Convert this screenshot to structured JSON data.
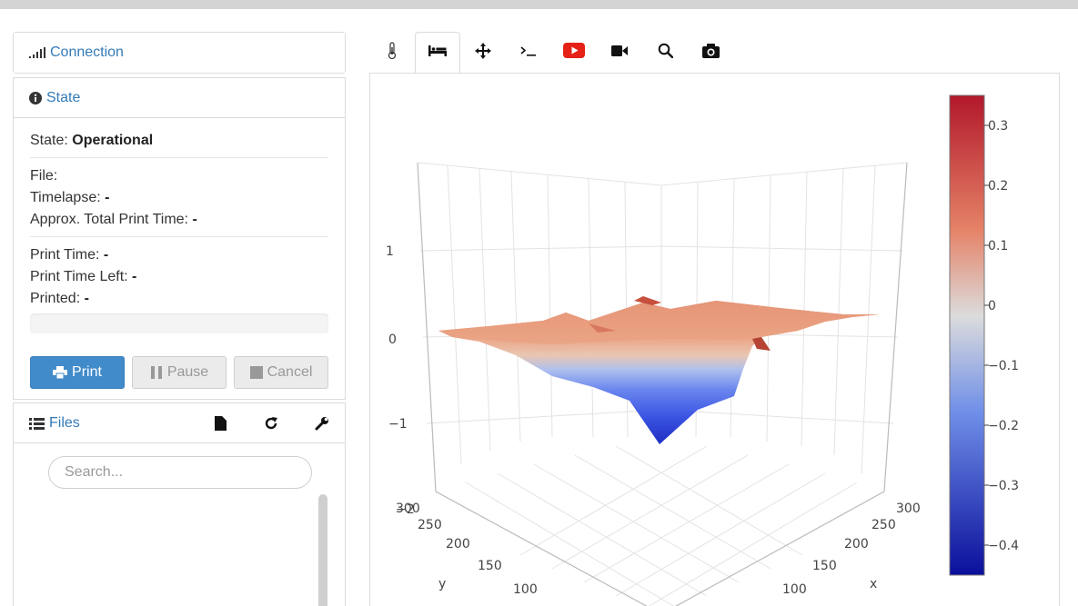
{
  "connection": {
    "title": "Connection"
  },
  "state": {
    "title": "State",
    "state_label": "State:",
    "state_value": "Operational",
    "file_label": "File:",
    "timelapse_label": "Timelapse:",
    "timelapse_value": "-",
    "approx_label": "Approx. Total Print Time:",
    "approx_value": "-",
    "print_time_label": "Print Time:",
    "print_time_value": "-",
    "time_left_label": "Print Time Left:",
    "time_left_value": "-",
    "printed_label": "Printed:",
    "printed_value": "-",
    "progress": 0
  },
  "buttons": {
    "print": "Print",
    "pause": "Pause",
    "cancel": "Cancel"
  },
  "files": {
    "title": "Files",
    "search_placeholder": "Search..."
  },
  "tabs": [
    {
      "icon": "thermometer-icon"
    },
    {
      "icon": "bed-icon",
      "active": true
    },
    {
      "icon": "move-icon"
    },
    {
      "icon": "terminal-icon"
    },
    {
      "icon": "youtube-icon"
    },
    {
      "icon": "video-camera-icon"
    },
    {
      "icon": "magnifier-icon"
    },
    {
      "icon": "camera-icon"
    }
  ],
  "colors": {
    "accent": "#337ab7",
    "primary_button": "#428bca",
    "youtube_red": "#e62117",
    "low": "#0b0f9c",
    "mid": "#dcdcdc",
    "high": "#b2182b"
  },
  "chart_data": {
    "type": "surface",
    "z_ticks": [
      "1",
      "0",
      "−1",
      "−2"
    ],
    "y_axis": {
      "label": "y",
      "ticks": [
        "300",
        "250",
        "200",
        "150",
        "100"
      ]
    },
    "x_axis": {
      "label": "x",
      "ticks": [
        "300",
        "250",
        "200",
        "150",
        "100"
      ]
    },
    "colorbar": {
      "ticks": [
        "0.3",
        "0.2",
        "0.1",
        "0",
        "−0.1",
        "−0.2",
        "−0.3",
        "−0.4"
      ],
      "range": [
        -0.45,
        0.35
      ]
    }
  }
}
